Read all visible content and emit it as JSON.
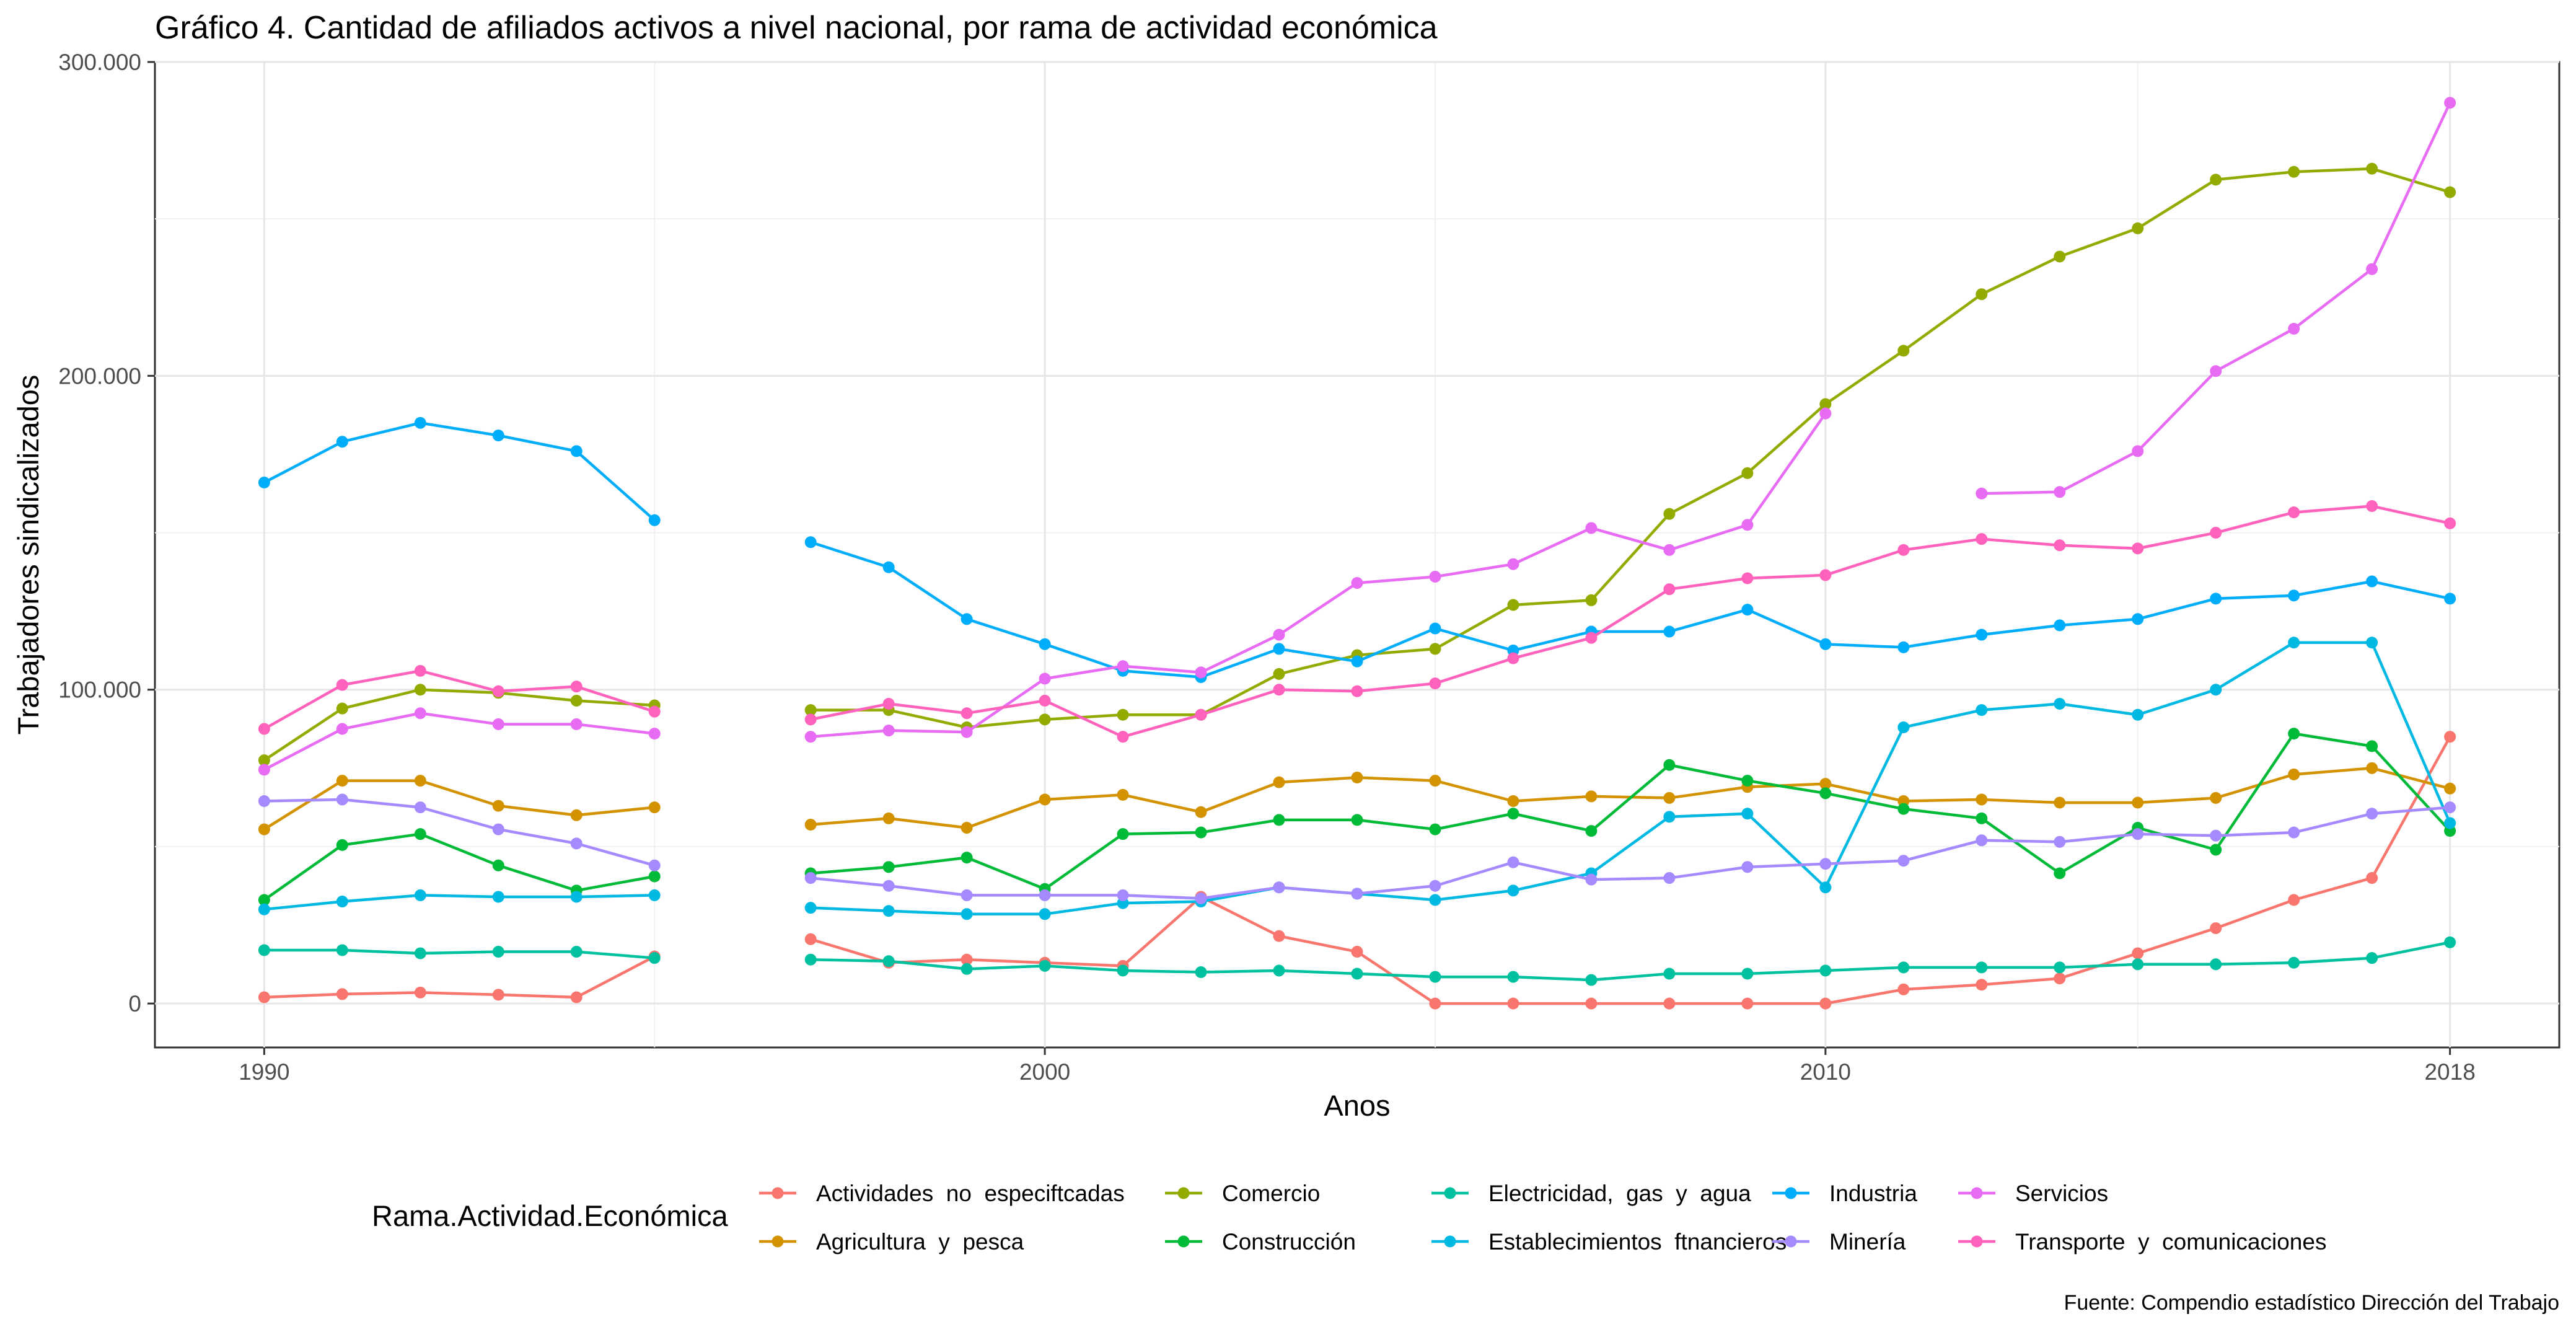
{
  "chart_data": {
    "type": "line",
    "title": "Gráfico 4. Cantidad de afiliados activos a nivel nacional, por rama de actividad económica",
    "xlabel": "Anos",
    "ylabel": "Trabajadores sindicalizados",
    "caption": "Fuente: Compendio estadístico Dirección del Trabajo",
    "legend_title": "Rama.Actividad.Económica",
    "legend_position": "bottom",
    "grid": true,
    "xlim": [
      1988.6,
      2019.4
    ],
    "ylim": [
      -14000,
      300000
    ],
    "x_ticks": [
      1990,
      2000,
      2010,
      2018
    ],
    "x_tick_labels": [
      "1990",
      "2000",
      "2010",
      "2018"
    ],
    "y_ticks": [
      0,
      100000,
      200000,
      300000
    ],
    "y_tick_labels": [
      "0",
      "100.000",
      "200.000",
      "300.000"
    ],
    "series": [
      {
        "name": "Actividades  no  especiftcadas",
        "color": "#F8766D",
        "points": [
          [
            1990,
            2000
          ],
          [
            1991,
            3000
          ],
          [
            1992,
            3500
          ],
          [
            1993,
            2800
          ],
          [
            1994,
            2000
          ],
          [
            1995,
            15000
          ],
          [
            1997,
            20500
          ],
          [
            1998,
            13000
          ],
          [
            1999,
            14000
          ],
          [
            2000,
            13000
          ],
          [
            2001,
            12000
          ],
          [
            2002,
            34000
          ],
          [
            2003,
            21500
          ],
          [
            2004,
            16500
          ],
          [
            2005,
            0
          ],
          [
            2006,
            0
          ],
          [
            2007,
            0
          ],
          [
            2008,
            0
          ],
          [
            2009,
            0
          ],
          [
            2010,
            0
          ],
          [
            2011,
            4500
          ],
          [
            2012,
            6000
          ],
          [
            2013,
            8000
          ],
          [
            2014,
            16000
          ],
          [
            2015,
            24000
          ],
          [
            2016,
            33000
          ],
          [
            2017,
            40000
          ],
          [
            2018,
            85000
          ]
        ]
      },
      {
        "name": "Agricultura  y  pesca",
        "color": "#D39200",
        "points": [
          [
            1990,
            55500
          ],
          [
            1991,
            71000
          ],
          [
            1992,
            71000
          ],
          [
            1993,
            63000
          ],
          [
            1994,
            60000
          ],
          [
            1995,
            62500
          ],
          [
            1997,
            57000
          ],
          [
            1998,
            59000
          ],
          [
            1999,
            56000
          ],
          [
            2000,
            65000
          ],
          [
            2001,
            66500
          ],
          [
            2002,
            61000
          ],
          [
            2003,
            70500
          ],
          [
            2004,
            72000
          ],
          [
            2005,
            71000
          ],
          [
            2006,
            64500
          ],
          [
            2007,
            66000
          ],
          [
            2008,
            65500
          ],
          [
            2009,
            69000
          ],
          [
            2010,
            70000
          ],
          [
            2011,
            64500
          ],
          [
            2012,
            65000
          ],
          [
            2013,
            64000
          ],
          [
            2014,
            64000
          ],
          [
            2015,
            65500
          ],
          [
            2016,
            73000
          ],
          [
            2017,
            75000
          ],
          [
            2018,
            68500
          ]
        ]
      },
      {
        "name": "Comercio",
        "color": "#93AA00",
        "points": [
          [
            1990,
            77500
          ],
          [
            1991,
            94000
          ],
          [
            1992,
            100000
          ],
          [
            1993,
            99000
          ],
          [
            1994,
            96500
          ],
          [
            1995,
            95000
          ],
          [
            1997,
            93500
          ],
          [
            1998,
            93500
          ],
          [
            1999,
            88000
          ],
          [
            2000,
            90500
          ],
          [
            2001,
            92000
          ],
          [
            2002,
            92000
          ],
          [
            2003,
            105000
          ],
          [
            2004,
            111000
          ],
          [
            2005,
            113000
          ],
          [
            2006,
            127000
          ],
          [
            2007,
            128500
          ],
          [
            2008,
            156000
          ],
          [
            2009,
            169000
          ],
          [
            2010,
            191000
          ],
          [
            2011,
            208000
          ],
          [
            2012,
            226000
          ],
          [
            2013,
            238000
          ],
          [
            2014,
            247000
          ],
          [
            2015,
            262500
          ],
          [
            2016,
            265000
          ],
          [
            2017,
            266000
          ],
          [
            2018,
            258500
          ]
        ]
      },
      {
        "name": "Construcción",
        "color": "#00BA38",
        "points": [
          [
            1990,
            33000
          ],
          [
            1991,
            50500
          ],
          [
            1992,
            54000
          ],
          [
            1993,
            44000
          ],
          [
            1994,
            36000
          ],
          [
            1995,
            40500
          ],
          [
            1997,
            41500
          ],
          [
            1998,
            43500
          ],
          [
            1999,
            46500
          ],
          [
            2000,
            36500
          ],
          [
            2001,
            54000
          ],
          [
            2002,
            54500
          ],
          [
            2003,
            58500
          ],
          [
            2004,
            58500
          ],
          [
            2005,
            55500
          ],
          [
            2006,
            60500
          ],
          [
            2007,
            55000
          ],
          [
            2008,
            76000
          ],
          [
            2009,
            71000
          ],
          [
            2010,
            67000
          ],
          [
            2011,
            62000
          ],
          [
            2012,
            59000
          ],
          [
            2013,
            41500
          ],
          [
            2014,
            56000
          ],
          [
            2015,
            49000
          ],
          [
            2016,
            86000
          ],
          [
            2017,
            82000
          ],
          [
            2018,
            55000
          ]
        ]
      },
      {
        "name": "Electricidad,  gas  y  agua",
        "color": "#00C19F",
        "points": [
          [
            1990,
            17000
          ],
          [
            1991,
            17000
          ],
          [
            1992,
            16000
          ],
          [
            1993,
            16500
          ],
          [
            1994,
            16500
          ],
          [
            1995,
            14500
          ],
          [
            1997,
            14000
          ],
          [
            1998,
            13500
          ],
          [
            1999,
            11000
          ],
          [
            2000,
            12000
          ],
          [
            2001,
            10500
          ],
          [
            2002,
            10000
          ],
          [
            2003,
            10500
          ],
          [
            2004,
            9500
          ],
          [
            2005,
            8500
          ],
          [
            2006,
            8500
          ],
          [
            2007,
            7500
          ],
          [
            2008,
            9500
          ],
          [
            2009,
            9500
          ],
          [
            2010,
            10500
          ],
          [
            2011,
            11500
          ],
          [
            2012,
            11500
          ],
          [
            2013,
            11500
          ],
          [
            2014,
            12500
          ],
          [
            2015,
            12500
          ],
          [
            2016,
            13000
          ],
          [
            2017,
            14500
          ],
          [
            2018,
            19500
          ]
        ]
      },
      {
        "name": "Establecimientos  ftnancieros",
        "color": "#00B9E3",
        "points": [
          [
            1990,
            30000
          ],
          [
            1991,
            32500
          ],
          [
            1992,
            34500
          ],
          [
            1993,
            34000
          ],
          [
            1994,
            34000
          ],
          [
            1995,
            34500
          ],
          [
            1997,
            30500
          ],
          [
            1998,
            29500
          ],
          [
            1999,
            28500
          ],
          [
            2000,
            28500
          ],
          [
            2001,
            32000
          ],
          [
            2002,
            32500
          ],
          [
            2003,
            37000
          ],
          [
            2004,
            35000
          ],
          [
            2005,
            33000
          ],
          [
            2006,
            36000
          ],
          [
            2007,
            41500
          ],
          [
            2008,
            59500
          ],
          [
            2009,
            60500
          ],
          [
            2010,
            37000
          ],
          [
            2011,
            88000
          ],
          [
            2012,
            93500
          ],
          [
            2013,
            95500
          ],
          [
            2014,
            92000
          ],
          [
            2015,
            100000
          ],
          [
            2016,
            115000
          ],
          [
            2017,
            115000
          ],
          [
            2018,
            57500
          ]
        ]
      },
      {
        "name": "Industria",
        "color": "#00ADFA",
        "points": [
          [
            1990,
            166000
          ],
          [
            1991,
            179000
          ],
          [
            1992,
            185000
          ],
          [
            1993,
            181000
          ],
          [
            1994,
            176000
          ],
          [
            1995,
            154000
          ],
          [
            1997,
            147000
          ],
          [
            1998,
            139000
          ],
          [
            1999,
            122500
          ],
          [
            2000,
            114500
          ],
          [
            2001,
            106000
          ],
          [
            2002,
            104000
          ],
          [
            2003,
            113000
          ],
          [
            2004,
            109000
          ],
          [
            2005,
            119500
          ],
          [
            2006,
            112500
          ],
          [
            2007,
            118500
          ],
          [
            2008,
            118500
          ],
          [
            2009,
            125500
          ],
          [
            2010,
            114500
          ],
          [
            2011,
            113500
          ],
          [
            2012,
            117500
          ],
          [
            2013,
            120500
          ],
          [
            2014,
            122500
          ],
          [
            2015,
            129000
          ],
          [
            2016,
            130000
          ],
          [
            2017,
            134500
          ],
          [
            2018,
            129000
          ]
        ]
      },
      {
        "name": "Minería",
        "color": "#A58AFF",
        "points": [
          [
            1990,
            64500
          ],
          [
            1991,
            65000
          ],
          [
            1992,
            62500
          ],
          [
            1993,
            55500
          ],
          [
            1994,
            51000
          ],
          [
            1995,
            44000
          ],
          [
            1997,
            40000
          ],
          [
            1998,
            37500
          ],
          [
            1999,
            34500
          ],
          [
            2000,
            34500
          ],
          [
            2001,
            34500
          ],
          [
            2002,
            33500
          ],
          [
            2003,
            37000
          ],
          [
            2004,
            35000
          ],
          [
            2005,
            37500
          ],
          [
            2006,
            45000
          ],
          [
            2007,
            39500
          ],
          [
            2008,
            40000
          ],
          [
            2009,
            43500
          ],
          [
            2010,
            44500
          ],
          [
            2011,
            45500
          ],
          [
            2012,
            52000
          ],
          [
            2013,
            51500
          ],
          [
            2014,
            54000
          ],
          [
            2015,
            53500
          ],
          [
            2016,
            54500
          ],
          [
            2017,
            60500
          ],
          [
            2018,
            62500
          ]
        ]
      },
      {
        "name": "Servicios",
        "color": "#E76BF3",
        "points": [
          [
            1990,
            74500
          ],
          [
            1991,
            87500
          ],
          [
            1992,
            92500
          ],
          [
            1993,
            89000
          ],
          [
            1994,
            89000
          ],
          [
            1995,
            86000
          ],
          [
            1997,
            85000
          ],
          [
            1998,
            87000
          ],
          [
            1999,
            86500
          ],
          [
            2000,
            103500
          ],
          [
            2001,
            107500
          ],
          [
            2002,
            105500
          ],
          [
            2003,
            117500
          ],
          [
            2004,
            134000
          ],
          [
            2005,
            136000
          ],
          [
            2006,
            140000
          ],
          [
            2007,
            151500
          ],
          [
            2008,
            144500
          ],
          [
            2009,
            152500
          ],
          [
            2010,
            188000
          ],
          [
            2012,
            162500
          ],
          [
            2013,
            163000
          ],
          [
            2014,
            176000
          ],
          [
            2015,
            201500
          ],
          [
            2016,
            215000
          ],
          [
            2017,
            234000
          ],
          [
            2018,
            287000
          ]
        ]
      },
      {
        "name": "Transporte  y  comunicaciones",
        "color": "#FF62BC",
        "points": [
          [
            1990,
            87500
          ],
          [
            1991,
            101500
          ],
          [
            1992,
            106000
          ],
          [
            1993,
            99500
          ],
          [
            1994,
            101000
          ],
          [
            1995,
            93000
          ],
          [
            1997,
            90500
          ],
          [
            1998,
            95500
          ],
          [
            1999,
            92500
          ],
          [
            2000,
            96500
          ],
          [
            2001,
            85000
          ],
          [
            2002,
            92000
          ],
          [
            2003,
            100000
          ],
          [
            2004,
            99500
          ],
          [
            2005,
            102000
          ],
          [
            2006,
            110000
          ],
          [
            2007,
            116500
          ],
          [
            2008,
            132000
          ],
          [
            2009,
            135500
          ],
          [
            2010,
            136500
          ],
          [
            2011,
            144500
          ],
          [
            2012,
            148000
          ],
          [
            2013,
            146000
          ],
          [
            2014,
            145000
          ],
          [
            2015,
            150000
          ],
          [
            2016,
            156500
          ],
          [
            2017,
            158500
          ],
          [
            2018,
            153000
          ]
        ]
      }
    ]
  }
}
